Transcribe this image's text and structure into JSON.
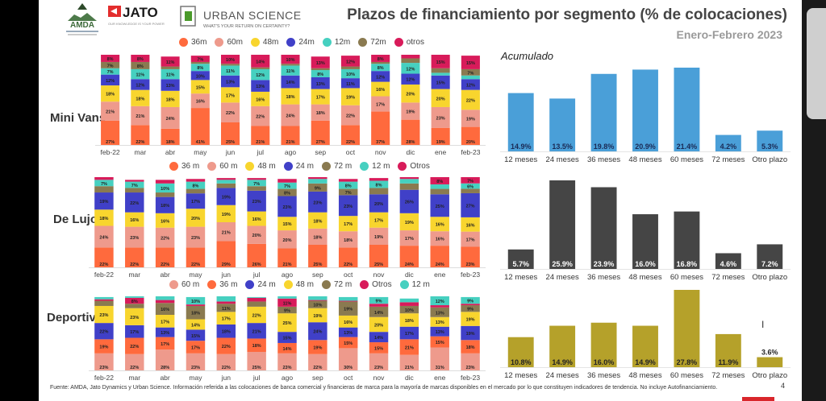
{
  "header": {
    "title": "Plazos de financiamiento por segmento (% de colocaciones)",
    "subtitle": "Enero-Febrero 2023",
    "logos": [
      {
        "name": "AMDA",
        "text": "AMDA"
      },
      {
        "name": "JATO",
        "text": "JATO",
        "tagline": "OUR KNOWLEDGE IS YOUR POWER"
      },
      {
        "name": "Urban Science",
        "text": "URBAN SCIENCE",
        "tagline": "WHAT'S YOUR RETURN ON CERTAINTY?"
      }
    ]
  },
  "colors": {
    "36m": "#ff6a3d",
    "60m": "#ee9a8c",
    "48m": "#f8d52e",
    "24m": "#4040c8",
    "12m": "#46d0c0",
    "72m": "#8a7a50",
    "otros": "#d81b5a",
    "minivans_bar": "#4a9fd8",
    "lujo_bar": "#454545",
    "deportivos_bar": "#b5a12a"
  },
  "accumulated_label": "Acumulado",
  "footer": {
    "source": "Fuente: AMDA, Jato Dynamics y Urban Science. Información referida a las colocaciones de banca comercial y financieras de marca para la mayoría de marcas disponibles en el mercado por lo que constituyen indicadores de tendencia. No incluye Autofinanciamiento.",
    "page_number": "4"
  },
  "chart_data": [
    {
      "type": "bar",
      "stacked": true,
      "title": "Mini Vans",
      "categories": [
        "feb-22",
        "mar",
        "abr",
        "may",
        "jun",
        "jul",
        "ago",
        "sep",
        "oct",
        "nov",
        "dic",
        "ene",
        "feb-23"
      ],
      "legend": [
        "36m",
        "60m",
        "48m",
        "24m",
        "12m",
        "72m",
        "otros"
      ],
      "legend_position": "top",
      "series": [
        {
          "name": "36m",
          "key": "36m",
          "values": [
            27,
            22,
            18,
            41,
            25,
            21,
            21,
            27,
            22,
            37,
            28,
            19,
            20
          ]
        },
        {
          "name": "60m",
          "key": "60m",
          "values": [
            21,
            21,
            24,
            16,
            22,
            22,
            24,
            18,
            22,
            17,
            19,
            23,
            19
          ]
        },
        {
          "name": "48m",
          "key": "48m",
          "values": [
            18,
            18,
            18,
            15,
            17,
            16,
            18,
            17,
            19,
            16,
            20,
            20,
            22
          ]
        },
        {
          "name": "24m",
          "key": "24m",
          "values": [
            12,
            12,
            13,
            10,
            13,
            13,
            14,
            13,
            11,
            12,
            12,
            15,
            12
          ]
        },
        {
          "name": "12m",
          "key": "12m",
          "values": [
            7,
            11,
            11,
            8,
            11,
            12,
            11,
            8,
            10,
            8,
            12,
            3,
            4
          ]
        },
        {
          "name": "72m",
          "key": "72m",
          "values": [
            7,
            8,
            3,
            2,
            2,
            2,
            2,
            2,
            3,
            2,
            5,
            5,
            7
          ]
        },
        {
          "name": "otros",
          "key": "otros",
          "values": [
            8,
            8,
            11,
            7,
            10,
            14,
            10,
            13,
            12,
            8,
            4,
            15,
            15
          ]
        }
      ],
      "hidden_labels": {
        "otros": [
          10
        ],
        "72m": [
          2,
          3,
          4,
          5,
          6,
          7,
          8,
          9,
          10,
          11
        ],
        "12m": [
          11,
          12
        ]
      }
    },
    {
      "type": "bar",
      "stacked": true,
      "title": "De Lujo",
      "categories": [
        "feb-22",
        "mar",
        "abr",
        "may",
        "jun",
        "jul",
        "ago",
        "sep",
        "oct",
        "nov",
        "dic",
        "ene",
        "feb-23"
      ],
      "legend": [
        "36 m",
        "60 m",
        "48 m",
        "24 m",
        "72 m",
        "12 m",
        "Otros"
      ],
      "legend_position": "top",
      "series": [
        {
          "name": "36 m",
          "key": "36m",
          "values": [
            22,
            22,
            22,
            22,
            29,
            26,
            21,
            25,
            22,
            25,
            24,
            24,
            23
          ]
        },
        {
          "name": "60 m",
          "key": "60m",
          "values": [
            24,
            23,
            22,
            23,
            21,
            20,
            20,
            18,
            18,
            19,
            17,
            16,
            17
          ]
        },
        {
          "name": "48 m",
          "key": "48m",
          "values": [
            18,
            16,
            16,
            20,
            19,
            16,
            15,
            18,
            17,
            17,
            19,
            16,
            16
          ]
        },
        {
          "name": "24 m",
          "key": "24m",
          "values": [
            19,
            22,
            18,
            17,
            19,
            23,
            23,
            23,
            23,
            20,
            26,
            25,
            27
          ]
        },
        {
          "name": "72 m",
          "key": "72m",
          "values": [
            7,
            5,
            5,
            5,
            5,
            5,
            8,
            9,
            7,
            7,
            7,
            6,
            5
          ]
        },
        {
          "name": "12 m",
          "key": "12m",
          "values": [
            7,
            7,
            10,
            8,
            4,
            7,
            7,
            5,
            8,
            8,
            5,
            5,
            6
          ]
        },
        {
          "name": "Otros",
          "key": "otros",
          "values": [
            3,
            2,
            4,
            3,
            2,
            2,
            4,
            2,
            3,
            3,
            2,
            8,
            7
          ]
        }
      ],
      "hidden_labels": {
        "72m": [
          0,
          1,
          2,
          3,
          4,
          5,
          9,
          10,
          11,
          12
        ],
        "12m": [
          4,
          10,
          11
        ],
        "otros": [
          0,
          1,
          2,
          3,
          4,
          5,
          6,
          7,
          8,
          9,
          10
        ]
      }
    },
    {
      "type": "bar",
      "stacked": true,
      "title": "Deportivos",
      "categories": [
        "feb-22",
        "mar",
        "abr",
        "may",
        "jun",
        "jul",
        "ago",
        "sep",
        "oct",
        "nov",
        "dic",
        "ene",
        "feb-23"
      ],
      "legend": [
        "60 m",
        "36 m",
        "24 m",
        "48 m",
        "72 m",
        "Otros",
        "12 m"
      ],
      "legend_position": "top",
      "series": [
        {
          "name": "60 m",
          "key": "60m",
          "values": [
            23,
            22,
            28,
            23,
            22,
            25,
            23,
            22,
            30,
            23,
            21,
            31,
            23
          ]
        },
        {
          "name": "36 m",
          "key": "36m",
          "values": [
            19,
            22,
            17,
            17,
            22,
            18,
            14,
            19,
            15,
            15,
            21,
            15,
            18
          ]
        },
        {
          "name": "24 m",
          "key": "24m",
          "values": [
            22,
            17,
            13,
            15,
            18,
            21,
            15,
            24,
            13,
            14,
            17,
            13,
            19
          ]
        },
        {
          "name": "48 m",
          "key": "48m",
          "values": [
            23,
            23,
            17,
            14,
            17,
            22,
            25,
            19,
            16,
            20,
            18,
            13,
            19
          ]
        },
        {
          "name": "72 m",
          "key": "72m",
          "values": [
            7,
            6,
            16,
            18,
            11,
            7,
            9,
            10,
            19,
            14,
            10,
            13,
            9
          ]
        },
        {
          "name": "Otros",
          "key": "otros",
          "values": [
            2,
            8,
            4,
            2,
            3,
            5,
            11,
            1,
            1,
            4,
            5,
            3,
            2
          ]
        },
        {
          "name": "12 m",
          "key": "12m",
          "values": [
            3,
            2,
            5,
            10,
            7,
            1,
            3,
            5,
            5,
            9,
            5,
            12,
            9
          ]
        }
      ],
      "hidden_labels": {
        "72m": [
          0,
          5
        ],
        "otros": [
          0,
          2,
          3,
          4,
          5,
          7,
          8,
          9,
          10,
          11,
          12
        ],
        "12m": [
          0,
          1,
          2,
          4,
          5,
          6,
          7,
          8,
          10
        ]
      }
    },
    {
      "type": "bar",
      "title": "Mini Vans - Acumulado",
      "categories": [
        "12 meses",
        "24 meses",
        "36 meses",
        "48 meses",
        "60 meses",
        "72 meses",
        "Otro plazo"
      ],
      "values": [
        14.9,
        13.5,
        19.8,
        20.9,
        21.4,
        4.2,
        5.3
      ],
      "labels": [
        "14.9%",
        "13.5%",
        "19.8%",
        "20.9%",
        "21.4%",
        "4.2%",
        "5.3%"
      ],
      "color_key": "minivans_bar",
      "label_color": "#1a2a55"
    },
    {
      "type": "bar",
      "title": "De Lujo - Acumulado",
      "categories": [
        "12 meses",
        "24 meses",
        "36 meses",
        "48 meses",
        "60 meses",
        "72 meses",
        "Otro plazo"
      ],
      "values": [
        5.7,
        25.9,
        23.9,
        16.0,
        16.8,
        4.6,
        7.2
      ],
      "labels": [
        "5.7%",
        "25.9%",
        "23.9%",
        "16.0%",
        "16.8%",
        "4.6%",
        "7.2%"
      ],
      "color_key": "lujo_bar",
      "label_color": "#ffffff"
    },
    {
      "type": "bar",
      "title": "Deportivos - Acumulado",
      "categories": [
        "12 meses",
        "24 meses",
        "36 meses",
        "48 meses",
        "60 meses",
        "72 meses",
        "Otro plazo"
      ],
      "values": [
        10.8,
        14.9,
        16.0,
        14.9,
        27.8,
        11.9,
        3.6
      ],
      "labels": [
        "10.8%",
        "14.9%",
        "16.0%",
        "14.9%",
        "27.8%",
        "11.9%",
        "3.6%"
      ],
      "color_key": "deportivos_bar",
      "label_color": "#222222"
    }
  ]
}
